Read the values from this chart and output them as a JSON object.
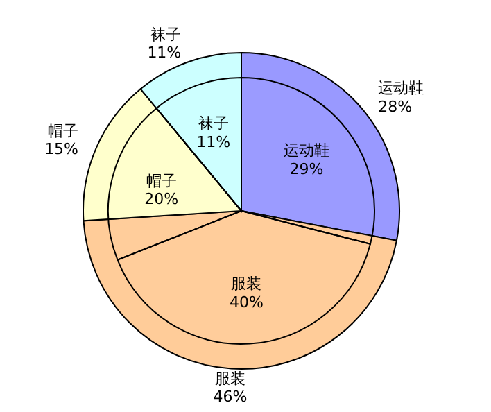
{
  "chart_data": {
    "type": "pie",
    "categories": [
      "运动鞋",
      "服装",
      "帽子",
      "袜子"
    ],
    "series": [
      {
        "values": [
          28,
          46,
          15,
          11
        ],
        "value_labels": [
          "28%",
          "46%",
          "15%",
          "11%"
        ],
        "colors": [
          "#9999ff",
          "#ffcc99",
          "#ffffcc",
          "#ccffff"
        ]
      },
      {
        "values": [
          29,
          40,
          20,
          11
        ],
        "value_labels": [
          "29%",
          "40%",
          "20%",
          "11%"
        ],
        "color": "#000000"
      }
    ],
    "legend": false
  }
}
